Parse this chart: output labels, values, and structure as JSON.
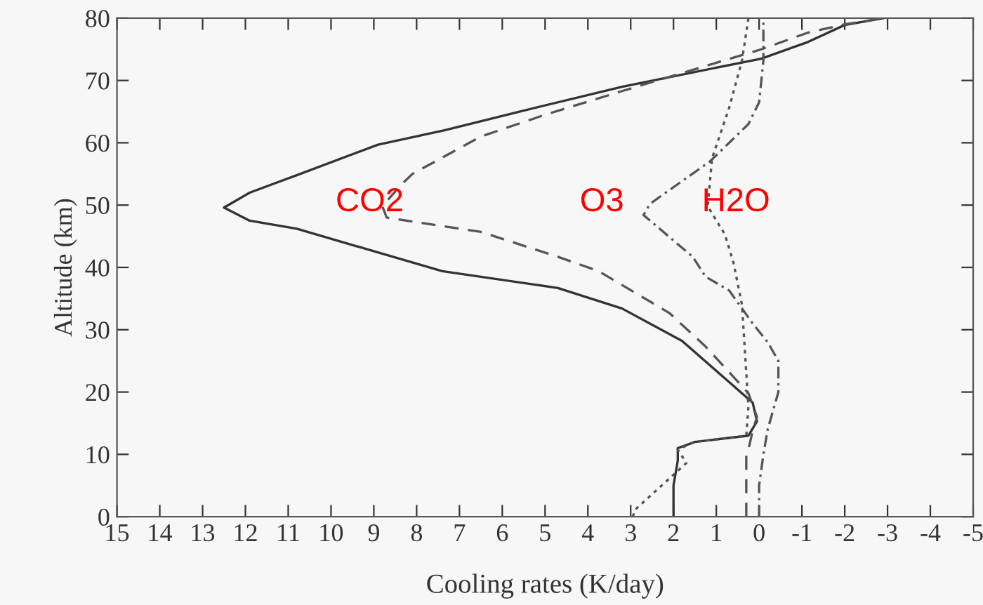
{
  "chart_data": {
    "type": "line",
    "xlabel": "Cooling rates (K/day)",
    "ylabel": "Altitude (km)",
    "xlim": [
      15,
      -5
    ],
    "ylim": [
      0,
      80
    ],
    "xticks": [
      15,
      14,
      13,
      12,
      11,
      10,
      9,
      8,
      7,
      6,
      5,
      4,
      3,
      2,
      1,
      0,
      {
        "value": -1,
        "label": "-1"
      },
      {
        "value": -2,
        "label": "-2"
      },
      {
        "value": -3,
        "label": "-3"
      },
      {
        "value": -4,
        "label": "-4"
      },
      {
        "value": -5,
        "label": "-5"
      }
    ],
    "yticks": [
      0,
      10,
      20,
      30,
      40,
      50,
      60,
      70,
      80
    ],
    "grid": false,
    "legend": false,
    "series": [
      {
        "color": "#333333",
        "line_style": "solid",
        "x": [
          2.0,
          2.0,
          1.9,
          1.9,
          1.5,
          0.25,
          0.05,
          0.15,
          0.6,
          1.8,
          3.2,
          4.7,
          7.4,
          10.8,
          11.9,
          12.5,
          11.9,
          10.8,
          8.9,
          7.35,
          5.6,
          3.2,
          -0.05,
          -1.15,
          -2.0,
          -2.9
        ],
        "values": [
          0,
          5,
          9,
          11,
          12,
          13,
          15.3,
          18.3,
          21,
          28.2,
          33.4,
          36.7,
          39.4,
          46.2,
          47.5,
          49.6,
          52,
          54.8,
          59.7,
          62,
          65,
          69,
          73.5,
          76.2,
          78.9,
          80
        ]
      },
      {
        "name": "CO2",
        "color": "#555555",
        "line_style": "dashed",
        "x": [
          0.3,
          0.3,
          0.25,
          0.15,
          0.05,
          0.25,
          1.25,
          2.1,
          3.75,
          4.7,
          6.5,
          8.7,
          8.8,
          8.4,
          8.1,
          6.5,
          5.0,
          3.2,
          -0.05,
          -1.15,
          -2.0,
          -2.9
        ],
        "values": [
          0,
          10,
          10.8,
          13.8,
          16,
          19.8,
          27.3,
          32.7,
          39.4,
          41.7,
          45.7,
          48,
          49.8,
          53,
          55,
          61,
          64.5,
          68.3,
          75,
          77.7,
          79,
          80
        ]
      },
      {
        "name": "O3",
        "color": "#555555",
        "line_style": "dashdot",
        "x": [
          0.0,
          0.0,
          -0.1,
          -0.2,
          -0.45,
          -0.45,
          -0.2,
          0.15,
          0.7,
          1.25,
          1.55,
          2.7,
          2.55,
          1.15,
          0.25,
          0.0,
          -0.1,
          -0.1
        ],
        "values": [
          0,
          5,
          10,
          14,
          20,
          25,
          28,
          31,
          36.3,
          38.5,
          41.7,
          48.4,
          50.2,
          57,
          63,
          66.5,
          73.2,
          80
        ]
      },
      {
        "name": "H2O",
        "color": "#555555",
        "line_style": "dotted",
        "x": [
          2.95,
          2.9,
          1.7,
          1.9,
          1.5,
          0.3,
          0.25,
          0.4,
          0.6,
          0.8,
          1.2,
          1.1,
          0.7,
          0.4,
          0.25
        ],
        "values": [
          0,
          1.1,
          8.6,
          10.8,
          12,
          13,
          17.6,
          34,
          40.8,
          45.3,
          49.8,
          57.5,
          65.6,
          73.2,
          80
        ]
      }
    ]
  }
}
